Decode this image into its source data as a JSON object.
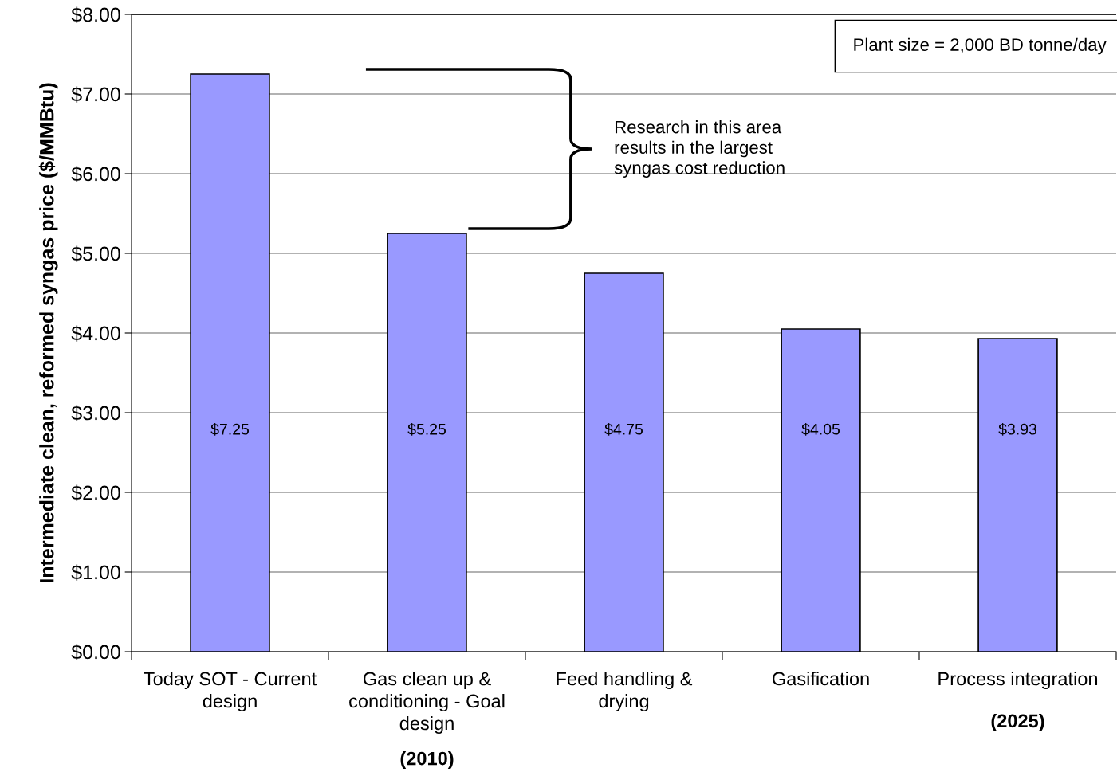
{
  "chart_data": {
    "type": "bar",
    "ylabel": "Intermediate clean, reformed syngas price ($/MMBtu)",
    "categories": [
      "Today SOT - Current\ndesign",
      "Gas clean up &\nconditioning - Goal\ndesign",
      "Feed handling &\ndrying",
      "Gasification",
      "Process integration"
    ],
    "values": [
      7.25,
      5.25,
      4.75,
      4.05,
      3.93
    ],
    "value_labels": [
      "$7.25",
      "$5.25",
      "$4.75",
      "$4.05",
      "$3.93"
    ],
    "color": "#9999ff",
    "ylim": [
      0,
      8
    ],
    "yticks": [
      {
        "value": 0,
        "label": "$0.00"
      },
      {
        "value": 1,
        "label": "$1.00"
      },
      {
        "value": 2,
        "label": "$2.00"
      },
      {
        "value": 3,
        "label": "$3.00"
      },
      {
        "value": 4,
        "label": "$4.00"
      },
      {
        "value": 5,
        "label": "$5.00"
      },
      {
        "value": 6,
        "label": "$6.00"
      },
      {
        "value": 7,
        "label": "$7.00"
      },
      {
        "value": 8,
        "label": "$8.00"
      }
    ],
    "grid": "y",
    "annotations": [
      "Plant size = 2,000 BD tonne/day",
      "Research in this area\nresults in the largest\nsyngas cost reduction",
      "(2010)",
      "(2025)"
    ]
  }
}
